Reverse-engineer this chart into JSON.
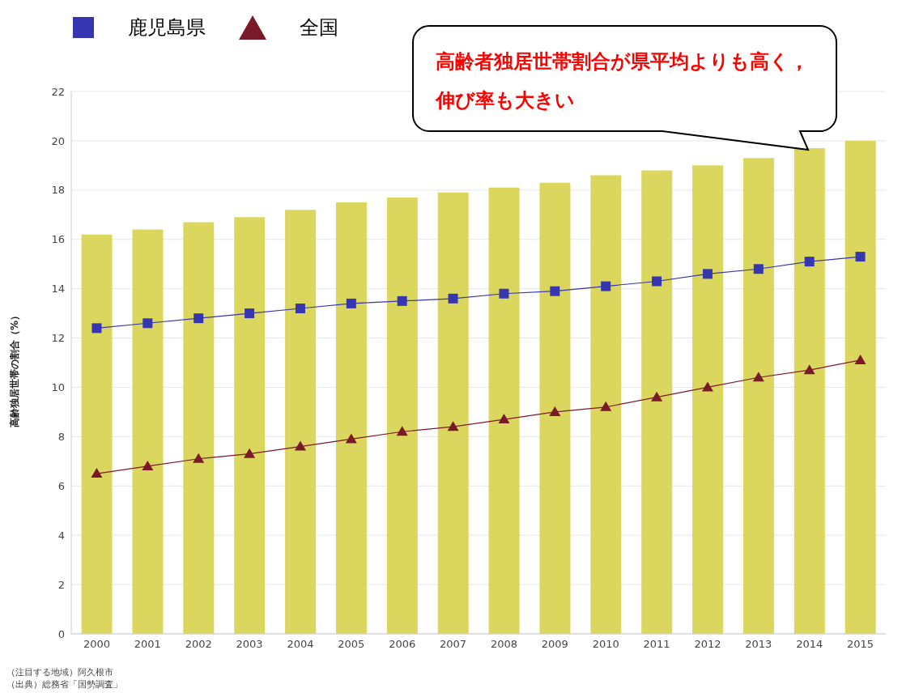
{
  "chart_data": {
    "type": "bar",
    "ylabel": "高齢独居世帯の割合（%）",
    "categories": [
      "2000",
      "2001",
      "2002",
      "2003",
      "2004",
      "2005",
      "2006",
      "2007",
      "2008",
      "2009",
      "2010",
      "2011",
      "2012",
      "2013",
      "2014",
      "2015"
    ],
    "series": [
      {
        "color": "#dbd75e",
        "values": [
          16.2,
          16.4,
          16.7,
          16.9,
          17.2,
          17.5,
          17.7,
          17.9,
          18.1,
          18.3,
          18.6,
          18.8,
          19.0,
          19.3,
          19.7,
          20.0
        ]
      },
      {
        "type": "line",
        "name": "鹿児島県",
        "color": "#3636b0",
        "marker": "square",
        "values": [
          12.4,
          12.6,
          12.8,
          13.0,
          13.2,
          13.4,
          13.5,
          13.6,
          13.8,
          13.9,
          14.1,
          14.3,
          14.6,
          14.8,
          15.1,
          15.3
        ]
      },
      {
        "type": "line",
        "name": "全国",
        "color": "#7a1a28",
        "marker": "triangle",
        "values": [
          6.5,
          6.8,
          7.1,
          7.3,
          7.6,
          7.9,
          8.2,
          8.4,
          8.7,
          9.0,
          9.2,
          9.6,
          10.0,
          10.4,
          10.7,
          11.1
        ]
      }
    ],
    "ylim": [
      0,
      22
    ],
    "yticks": [
      0,
      2,
      4,
      6,
      8,
      10,
      12,
      14,
      16,
      18,
      20,
      22
    ],
    "grid": "y",
    "legend": "top left",
    "annotations": [
      "高齢者独居世帯割合が県平均よりも高く，伸び率も大きい",
      "（注目する地域）阿久根市",
      "（出典）総務省「国勢調査」"
    ]
  }
}
